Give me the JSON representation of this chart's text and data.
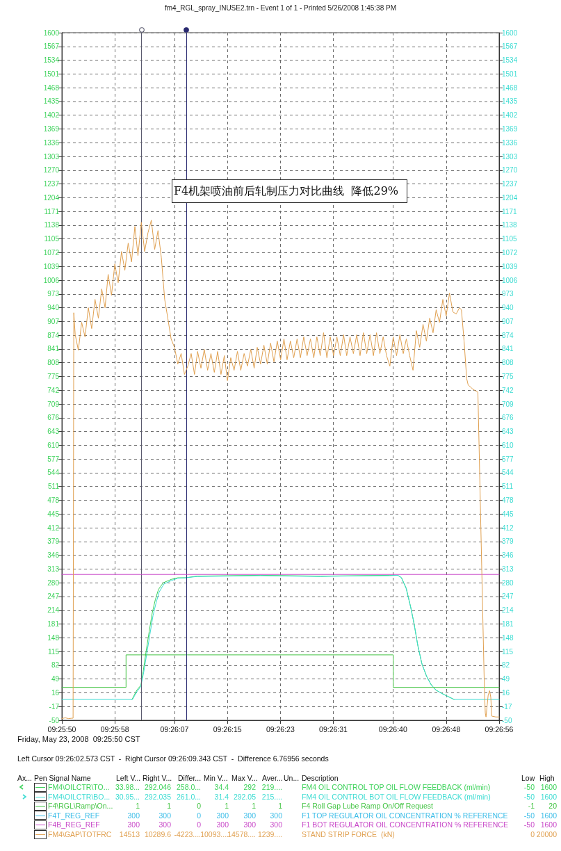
{
  "chart_data": {
    "type": "line",
    "title": "fm4_RGL_spray_INUSE2.trn - Event 1 of 1 - Printed 5/26/2008 1:45:38 PM",
    "xlim": [
      9.43056,
      9.44889
    ],
    "xticks": [
      {
        "value": 9.43056,
        "label": "09:25:50"
      },
      {
        "value": 9.43278,
        "label": "09:25:58"
      },
      {
        "value": 9.43528,
        "label": "09:26:07"
      },
      {
        "value": 9.4375,
        "label": "09:26:15"
      },
      {
        "value": 9.43972,
        "label": "09:26:23"
      },
      {
        "value": 9.44194,
        "label": "09:26:31"
      },
      {
        "value": 9.44444,
        "label": "09:26:40"
      },
      {
        "value": 9.44667,
        "label": "09:26:48"
      },
      {
        "value": 9.44889,
        "label": "09:26:56"
      }
    ],
    "ylim": [
      -50,
      1600
    ],
    "yticks": [
      -50,
      -17,
      16,
      49,
      82,
      115,
      148,
      181,
      214,
      247,
      280,
      313,
      346,
      379,
      412,
      445,
      478,
      511,
      544,
      577,
      610,
      643,
      676,
      709,
      742,
      775,
      808,
      841,
      874,
      907,
      940,
      973,
      1006,
      1039,
      1072,
      1105,
      1138,
      1171,
      1204,
      1237,
      1270,
      1303,
      1336,
      1369,
      1402,
      1435,
      1468,
      1501,
      1534,
      1567,
      1600
    ],
    "y2lim": [
      -50,
      1600
    ],
    "y2ticks": [
      -50,
      -17,
      16,
      49,
      82,
      115,
      148,
      181,
      214,
      247,
      280,
      313,
      346,
      379,
      412,
      445,
      478,
      511,
      544,
      577,
      610,
      643,
      676,
      709,
      742,
      775,
      808,
      841,
      874,
      907,
      940,
      973,
      1006,
      1039,
      1072,
      1105,
      1138,
      1171,
      1204,
      1237,
      1270,
      1303,
      1336,
      1369,
      1402,
      1435,
      1468,
      1501,
      1534,
      1567,
      1600
    ],
    "grid": true,
    "legend": "bottom",
    "marker": "none",
    "ref_lines": [
      {
        "axis": "x",
        "value": 9.4339,
        "label": null,
        "color": "#5a5a6e"
      },
      {
        "axis": "x",
        "value": 9.43578,
        "label": null,
        "color": "#2a2a70"
      }
    ],
    "annotations": [
      "F4机架喷油前后轧制压力对比曲线  降低29%",
      "Friday, May 23, 2008  09:25:50 CST",
      "Left Cursor 09:26:02.573 CST  -  Right Cursor 09:26:09.343 CST  -  Difference 6.76956 seconds",
      "Ax...",
      "Pen Signal Name",
      "Left V...",
      "Right V...",
      "Differ...",
      "Min V...",
      "Max V...",
      "Aver...",
      "Un...",
      "Description",
      "Low",
      "High",
      "33.98...",
      "292.046",
      "258.0...",
      "34.4",
      "292",
      "219....",
      "FM4 OIL CONTROL TOP OIL FLOW FEEDBACK (ml/min)",
      "-50",
      "1600",
      "30.95...",
      "292.035",
      "261.0...",
      "31.4",
      "292.05",
      "215....",
      "FM4 OIL CONTROL BOT OIL FLOW FEEDBACK (ml/min)",
      "-50",
      "1600",
      "1",
      "1",
      "0",
      "1",
      "1",
      "1",
      "F4 Roll Gap Lube Ramp On/Off Request",
      "-1",
      "20",
      "300",
      "300",
      "0",
      "300",
      "300",
      "300",
      "F1 TOP REGULATOR OIL CONCENTRATION % REFERENCE",
      "-50",
      "1600",
      "300",
      "300",
      "0",
      "300",
      "300",
      "300",
      "F1 BOT REGULATOR OIL CONCENTRATION % REFERENCE",
      "-50",
      "1600",
      "14513",
      "10289.6",
      "-4223....",
      "10093....",
      "14578....",
      "1239....",
      "STAND STRIP FORCE  (kN)",
      "0",
      "20000"
    ],
    "series": [
      {
        "name": "FM4\\OILCTR\\TO...",
        "color": "#3cd25a",
        "x": [
          9.4335,
          9.4337,
          9.43387,
          9.43397,
          9.43409,
          9.43422,
          9.43435,
          9.43448,
          9.43461,
          9.43481,
          9.43514,
          9.43542,
          9.43575,
          9.43623,
          9.4375,
          9.43889,
          9.44139,
          9.44431,
          9.44464,
          9.4448,
          9.445,
          9.44519,
          9.44533,
          9.44549,
          9.44566,
          9.44586,
          9.44605,
          9.44625,
          9.44658,
          9.447
        ],
        "values": [
          0,
          22,
          34,
          68,
          115,
          163,
          208,
          240,
          264,
          280,
          288,
          292,
          292,
          296,
          297,
          298,
          296,
          298,
          298,
          292,
          266,
          220,
          180,
          127,
          84,
          54,
          35,
          22,
          12,
          0
        ]
      },
      {
        "name": "FM4\\OILCTR\\BO...",
        "color": "#3cdcd2",
        "axis": "y2",
        "x": [
          9.43056,
          9.43352,
          9.43372,
          9.43387,
          9.43399,
          9.43412,
          9.43425,
          9.43438,
          9.43451,
          9.43464,
          9.43484,
          9.43514,
          9.43542,
          9.43575,
          9.43623,
          9.4375,
          9.43889,
          9.44139,
          9.44223,
          9.44431,
          9.44464,
          9.44478,
          9.44498,
          9.44517,
          9.44531,
          9.44547,
          9.44564,
          9.44584,
          9.44603,
          9.44623,
          9.44656,
          9.447,
          9.44889
        ],
        "values": [
          0,
          0,
          20,
          31,
          65,
          110,
          156,
          201,
          232,
          258,
          277,
          285,
          291,
          292,
          295,
          296,
          297,
          295,
          296,
          297,
          298,
          293,
          269,
          224,
          186,
          133,
          88,
          57,
          36,
          23,
          12,
          0,
          0
        ]
      },
      {
        "name": "F4\\RGL\\Ramp\\On...",
        "type": "step",
        "color": "#44c444",
        "x": [
          9.43056,
          9.43325,
          9.44445,
          9.44889
        ],
        "values": [
          29,
          107,
          29,
          29
        ]
      },
      {
        "name": "F4T_REG_REF",
        "color": "#3cbde8"
      },
      {
        "name": "F4B_REG_REF",
        "color": "#c848c8",
        "x": [
          9.43056,
          9.44889
        ],
        "values": [
          300,
          300
        ]
      },
      {
        "name": "FM4\\GAP\\TOTFRC",
        "color": "#e0a050",
        "x": [
          9.43056,
          9.4307,
          9.43084,
          9.43098,
          9.43103,
          9.43106,
          9.43112,
          9.43125,
          9.43139,
          9.43153,
          9.43167,
          9.43181,
          9.43195,
          9.43209,
          9.43223,
          9.43237,
          9.4325,
          9.43264,
          9.43278,
          9.43292,
          9.43306,
          9.4332,
          9.43334,
          9.43348,
          9.43362,
          9.43375,
          9.43389,
          9.43403,
          9.43417,
          9.43431,
          9.43445,
          9.43459,
          9.43473,
          9.43487,
          9.435,
          9.43514,
          9.43528,
          9.43542,
          9.43556,
          9.4357,
          9.43584,
          9.43598,
          9.43612,
          9.43625,
          9.43639,
          9.43653,
          9.43667,
          9.43681,
          9.43695,
          9.43709,
          9.43723,
          9.43737,
          9.4375,
          9.43764,
          9.43778,
          9.43792,
          9.43806,
          9.4382,
          9.43834,
          9.43848,
          9.43862,
          9.43875,
          9.43889,
          9.43903,
          9.43917,
          9.43931,
          9.43945,
          9.43959,
          9.43973,
          9.43987,
          9.44,
          9.44014,
          9.44028,
          9.44042,
          9.44056,
          9.4407,
          9.44084,
          9.44098,
          9.44112,
          9.44125,
          9.44139,
          9.44153,
          9.44167,
          9.44181,
          9.44195,
          9.44209,
          9.44223,
          9.44237,
          9.4425,
          9.44264,
          9.44278,
          9.44292,
          9.44306,
          9.4432,
          9.44334,
          9.44348,
          9.44362,
          9.44375,
          9.44389,
          9.44403,
          9.44417,
          9.44431,
          9.44445,
          9.44459,
          9.44473,
          9.44487,
          9.445,
          9.44514,
          9.44528,
          9.44542,
          9.44556,
          9.4457,
          9.44584,
          9.44598,
          9.44612,
          9.44625,
          9.44639,
          9.44653,
          9.44667,
          9.44681,
          9.44695,
          9.44709,
          9.44723,
          9.44731,
          9.44742,
          9.44753,
          9.44759,
          9.44778,
          9.448,
          9.44827,
          9.44831,
          9.44834,
          9.44843,
          9.44849,
          9.44854,
          9.44858,
          9.44875,
          9.44889
        ],
        "values": [
          -46,
          -44,
          -46,
          -45,
          -45,
          928,
          875,
          838,
          905,
          870,
          940,
          890,
          960,
          915,
          985,
          940,
          1020,
          970,
          1045,
          1000,
          1075,
          1030,
          1095,
          1050,
          1135,
          1065,
          1145,
          1075,
          1120,
          1150,
          1080,
          1125,
          1060,
          960,
          915,
          865,
          845,
          805,
          830,
          780,
          800,
          830,
          780,
          835,
          795,
          840,
          790,
          830,
          785,
          835,
          780,
          825,
          765,
          820,
          790,
          835,
          790,
          830,
          800,
          840,
          795,
          845,
          805,
          850,
          805,
          855,
          810,
          860,
          815,
          865,
          815,
          860,
          820,
          865,
          820,
          870,
          825,
          865,
          820,
          870,
          825,
          880,
          820,
          870,
          825,
          870,
          825,
          875,
          825,
          870,
          830,
          875,
          825,
          880,
          830,
          875,
          825,
          880,
          830,
          870,
          825,
          800,
          870,
          825,
          875,
          830,
          865,
          825,
          790,
          885,
          845,
          900,
          860,
          915,
          880,
          935,
          905,
          960,
          920,
          975,
          930,
          925,
          940,
          935,
          860,
          770,
          755,
          745,
          737,
          30,
          -33,
          -42,
          10,
          21,
          5,
          -40,
          -42,
          -42
        ]
      }
    ]
  }
}
